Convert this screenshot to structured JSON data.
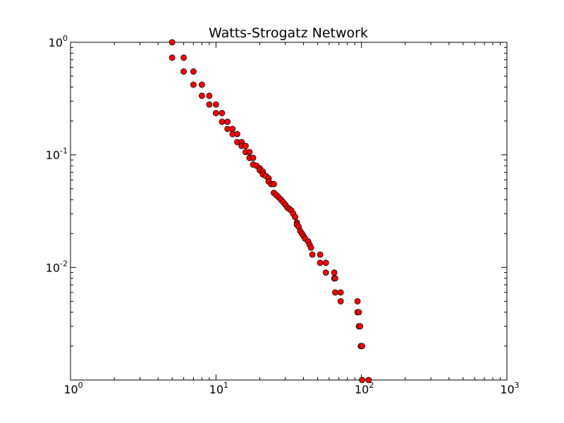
{
  "chart_data": {
    "type": "scatter",
    "title": "Watts-Strogatz Network",
    "xlabel": "",
    "ylabel": "",
    "xscale": "log",
    "yscale": "log",
    "xlim": [
      1,
      1000
    ],
    "ylim": [
      0.001,
      1
    ],
    "grid": false,
    "legend": "none",
    "marker_color": "#ff0000",
    "marker_edge_color": "#000000",
    "x_ticks": [
      {
        "base": "10",
        "exp": "0",
        "value": 1
      },
      {
        "base": "10",
        "exp": "1",
        "value": 10
      },
      {
        "base": "10",
        "exp": "2",
        "value": 100
      },
      {
        "base": "10",
        "exp": "3",
        "value": 1000
      }
    ],
    "y_ticks": [
      {
        "base": "10",
        "exp": "-2",
        "value": 0.01
      },
      {
        "base": "10",
        "exp": "-1",
        "value": 0.1
      },
      {
        "base": "10",
        "exp": "0",
        "value": 1
      }
    ],
    "series": [
      {
        "points": [
          [
            5,
            1.0
          ],
          [
            5,
            0.73
          ],
          [
            6,
            0.73
          ],
          [
            6,
            0.55
          ],
          [
            7,
            0.55
          ],
          [
            7,
            0.42
          ],
          [
            8,
            0.42
          ],
          [
            8,
            0.335
          ],
          [
            9,
            0.335
          ],
          [
            9,
            0.28
          ],
          [
            10,
            0.28
          ],
          [
            10,
            0.235
          ],
          [
            11,
            0.235
          ],
          [
            11,
            0.197
          ],
          [
            12,
            0.197
          ],
          [
            12,
            0.17
          ],
          [
            13,
            0.17
          ],
          [
            13,
            0.153
          ],
          [
            14,
            0.153
          ],
          [
            14,
            0.13
          ],
          [
            15,
            0.13
          ],
          [
            15,
            0.12
          ],
          [
            16,
            0.12
          ],
          [
            16,
            0.106
          ],
          [
            17,
            0.106
          ],
          [
            17,
            0.094
          ],
          [
            18,
            0.094
          ],
          [
            18,
            0.082
          ],
          [
            19,
            0.08
          ],
          [
            20,
            0.076
          ],
          [
            20,
            0.073
          ],
          [
            21,
            0.071
          ],
          [
            21,
            0.067
          ],
          [
            22,
            0.065
          ],
          [
            23,
            0.062
          ],
          [
            23,
            0.058
          ],
          [
            24,
            0.055
          ],
          [
            25,
            0.055
          ],
          [
            25,
            0.046
          ],
          [
            26,
            0.044
          ],
          [
            27,
            0.042
          ],
          [
            28,
            0.04
          ],
          [
            29,
            0.038
          ],
          [
            30,
            0.036
          ],
          [
            31,
            0.034
          ],
          [
            32,
            0.033
          ],
          [
            33,
            0.032
          ],
          [
            34,
            0.03
          ],
          [
            35,
            0.028
          ],
          [
            36,
            0.025
          ],
          [
            36,
            0.024
          ],
          [
            37,
            0.023
          ],
          [
            38,
            0.021
          ],
          [
            39,
            0.02
          ],
          [
            40,
            0.019
          ],
          [
            41,
            0.018
          ],
          [
            43,
            0.017
          ],
          [
            44,
            0.016
          ],
          [
            45,
            0.015
          ],
          [
            46,
            0.013
          ],
          [
            52,
            0.013
          ],
          [
            52,
            0.011
          ],
          [
            57,
            0.011
          ],
          [
            57,
            0.009
          ],
          [
            65,
            0.009
          ],
          [
            65,
            0.008
          ],
          [
            66,
            0.008
          ],
          [
            66,
            0.006
          ],
          [
            72,
            0.006
          ],
          [
            72,
            0.005
          ],
          [
            94,
            0.005
          ],
          [
            94,
            0.004
          ],
          [
            96,
            0.004
          ],
          [
            96,
            0.003
          ],
          [
            98,
            0.003
          ],
          [
            99,
            0.002
          ],
          [
            101,
            0.002
          ],
          [
            101,
            0.001
          ],
          [
            112,
            0.001
          ]
        ]
      }
    ]
  }
}
